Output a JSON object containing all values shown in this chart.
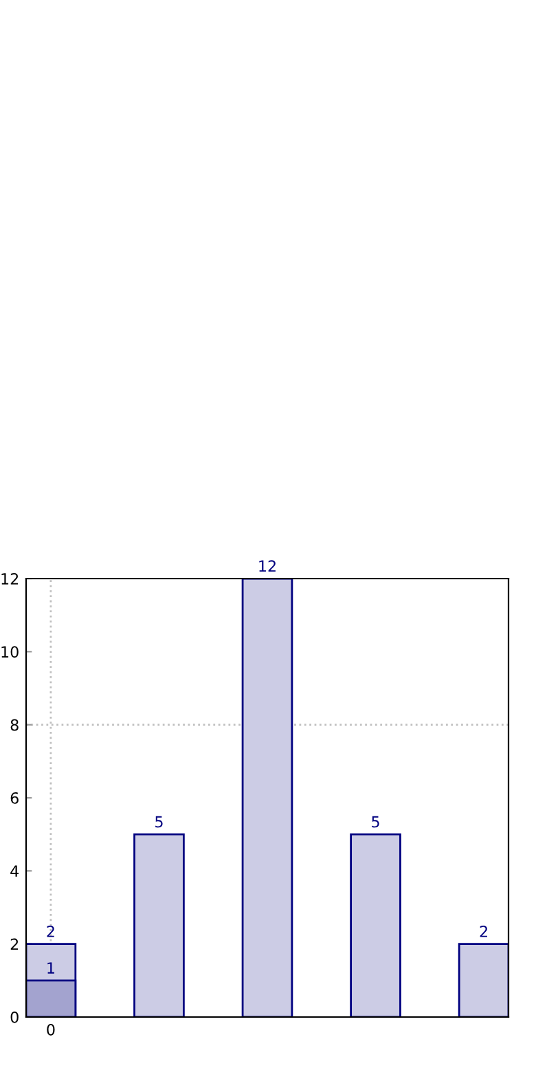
{
  "chart_data": {
    "type": "bar",
    "categories": [
      "0",
      null,
      null,
      null,
      null
    ],
    "series": [
      {
        "color": "#ccccE5",
        "values": [
          2,
          5,
          12,
          5,
          2
        ]
      },
      {
        "color": "#a3a3cf",
        "values": [
          1,
          null,
          null,
          null,
          null
        ]
      }
    ],
    "ylim": [
      0,
      12
    ],
    "yticks": [
      0,
      2,
      4,
      6,
      8,
      10,
      12
    ],
    "data_labels": true,
    "ref_lines": [
      {
        "axis": "y",
        "value": 8,
        "color": "#c0c0c0",
        "line_style": "dotted"
      },
      {
        "axis": "x",
        "value": "0",
        "color": "#c0c0c0",
        "line_style": "dotted"
      }
    ]
  }
}
